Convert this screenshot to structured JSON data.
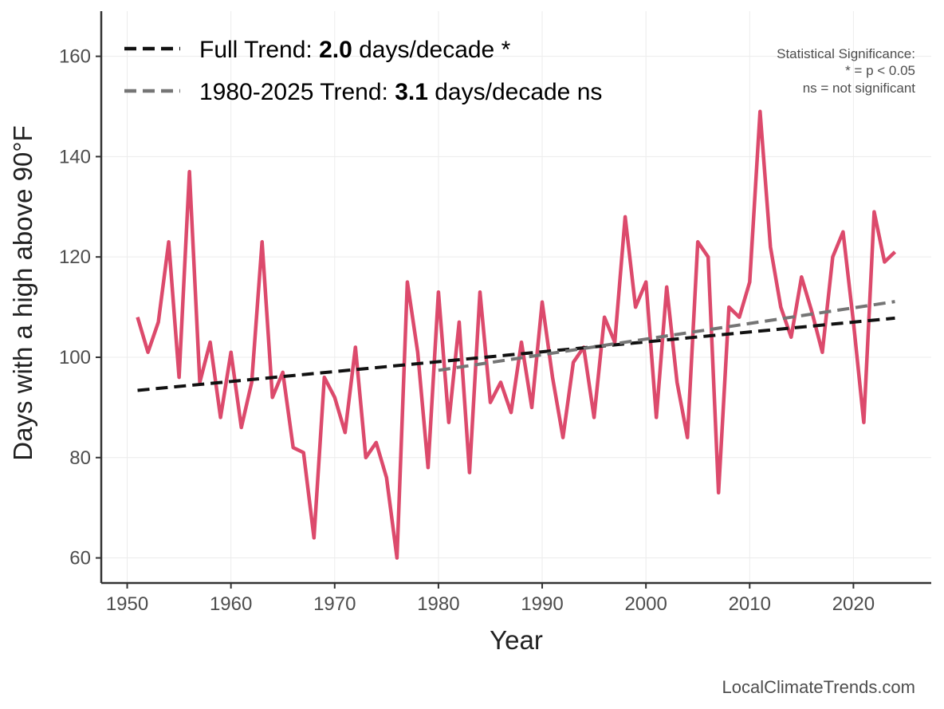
{
  "chart_data": {
    "type": "line",
    "xlabel": "Year",
    "ylabel": "Days with a high above 90°F",
    "xlim": [
      1947.5,
      2027.5
    ],
    "ylim": [
      55,
      169
    ],
    "x_ticks": [
      1950,
      1960,
      1970,
      1980,
      1990,
      2000,
      2010,
      2020
    ],
    "y_ticks": [
      60,
      80,
      100,
      120,
      140,
      160
    ],
    "grid": true,
    "colors": {
      "series": "#dc4a6c",
      "full_trend": "#111111",
      "recent_trend": "#757575",
      "axis": "#333333",
      "grid": "#ececec"
    },
    "series": [
      {
        "name": "Days with a high above 90°F",
        "x": [
          1951,
          1952,
          1953,
          1954,
          1955,
          1956,
          1957,
          1958,
          1959,
          1960,
          1961,
          1962,
          1963,
          1964,
          1965,
          1966,
          1967,
          1968,
          1969,
          1970,
          1971,
          1972,
          1973,
          1974,
          1975,
          1976,
          1977,
          1978,
          1979,
          1980,
          1981,
          1982,
          1983,
          1984,
          1985,
          1986,
          1987,
          1988,
          1989,
          1990,
          1991,
          1992,
          1993,
          1994,
          1995,
          1996,
          1997,
          1998,
          1999,
          2000,
          2001,
          2002,
          2003,
          2004,
          2005,
          2006,
          2007,
          2008,
          2009,
          2010,
          2011,
          2012,
          2013,
          2014,
          2015,
          2016,
          2017,
          2018,
          2019,
          2020,
          2021,
          2022,
          2023,
          2024
        ],
        "values": [
          108,
          101,
          107,
          123,
          96,
          137,
          95,
          103,
          88,
          101,
          86,
          95,
          123,
          92,
          97,
          82,
          81,
          64,
          96,
          92,
          85,
          102,
          80,
          83,
          76,
          60,
          115,
          101,
          78,
          113,
          87,
          107,
          77,
          113,
          91,
          95,
          89,
          103,
          90,
          111,
          96,
          84,
          99,
          102,
          88,
          108,
          103,
          128,
          110,
          115,
          88,
          114,
          95,
          84,
          123,
          120,
          73,
          110,
          108,
          115,
          149,
          122,
          110,
          104,
          116,
          109,
          101,
          120,
          125,
          107,
          87,
          129,
          119,
          121
        ]
      }
    ],
    "trends": [
      {
        "name": "Full Trend",
        "x": [
          1951,
          2024
        ],
        "y": [
          93.4,
          107.8
        ],
        "style": "dashed"
      },
      {
        "name": "1980-2025 Trend",
        "x": [
          1980,
          2024
        ],
        "y": [
          97.4,
          111.1
        ],
        "style": "dashed"
      }
    ],
    "legend": {
      "placement": "top-left",
      "entries": [
        {
          "prefix": "Full Trend: ",
          "value": "2.0",
          "suffix": " days/decade *"
        },
        {
          "prefix": "1980-2025 Trend: ",
          "value": "3.1",
          "suffix": " days/decade ns"
        }
      ]
    },
    "significance_note": [
      "Statistical Significance:",
      "* = p < 0.05",
      "ns = not significant"
    ],
    "credit": "LocalClimateTrends.com"
  }
}
